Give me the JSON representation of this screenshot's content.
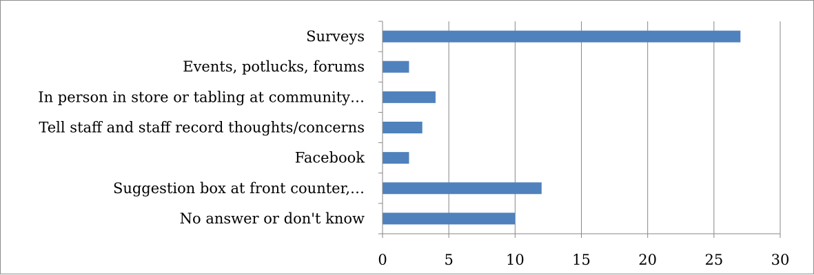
{
  "chart_data": {
    "type": "bar",
    "orientation": "horizontal",
    "title": "",
    "xlabel": "",
    "ylabel": "",
    "categories": [
      "Surveys",
      "Events, potlucks, forums",
      "In person in store or tabling at community…",
      "Tell staff and staff record thoughts/concerns",
      "Facebook",
      "Suggestion box at front counter,…",
      "No answer or don't know"
    ],
    "values": [
      27,
      2,
      4,
      3,
      2,
      12,
      10
    ],
    "xlim": [
      0,
      30
    ],
    "xticks": [
      0,
      5,
      10,
      15,
      20,
      25,
      30
    ],
    "grid": "vertical",
    "legend": "none",
    "colors": {
      "bar": "#4f81bd",
      "grid": "#868686",
      "axis": "#868686",
      "border": "#8c8c8c"
    }
  }
}
